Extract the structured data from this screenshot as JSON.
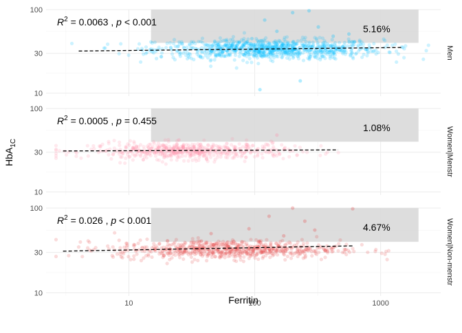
{
  "chart_data": {
    "type": "scatter",
    "xlabel": "Ferritin",
    "ylabel": "HbA",
    "ylabel_sub": "1C",
    "x_scale": "log",
    "y_scale": "log",
    "xlim": [
      2.2,
      3000
    ],
    "ylim": [
      9.2,
      100
    ],
    "x_ticks": [
      10,
      100,
      1000
    ],
    "x_tick_labels": [
      "10",
      "100",
      "1000"
    ],
    "y_ticks": [
      10,
      30,
      100
    ],
    "y_tick_labels": [
      "10",
      "30",
      "100"
    ],
    "shaded_region": {
      "x_min": 15,
      "x_max": 2000,
      "y_min": 40,
      "y_max": 100
    },
    "grid": true,
    "panels": [
      {
        "strip_label": "Men",
        "r2_value": "0.0063",
        "p_value": "< 0.001",
        "p_sep": " , ",
        "percent_label": "5.16%",
        "color": "#00BFFF",
        "trend": {
          "x": [
            4,
            1500
          ],
          "y": [
            31.9,
            35.2
          ]
        },
        "cloud": {
          "x_center": 130,
          "x_spread": 0.45,
          "y_center": 33.5,
          "y_spread": 0.06,
          "n": 900
        },
        "highlight": [
          {
            "x": 200,
            "y": 92
          },
          {
            "x": 270,
            "y": 97
          },
          {
            "x": 120,
            "y": 75
          },
          {
            "x": 320,
            "y": 62
          },
          {
            "x": 150,
            "y": 55
          },
          {
            "x": 420,
            "y": 48
          },
          {
            "x": 95,
            "y": 45
          },
          {
            "x": 560,
            "y": 51
          },
          {
            "x": 110,
            "y": 11
          },
          {
            "x": 230,
            "y": 14
          },
          {
            "x": 60,
            "y": 42
          }
        ]
      },
      {
        "strip_label": "Women|Menstr",
        "r2_value": "0.0005",
        "p_value": "= 0.455",
        "p_sep": " , ",
        "percent_label": "1.08%",
        "color": "#FF8FAB",
        "trend": {
          "x": [
            3,
            460
          ],
          "y": [
            31.0,
            31.9
          ]
        },
        "cloud": {
          "x_center": 30,
          "x_spread": 0.4,
          "y_center": 31,
          "y_spread": 0.05,
          "n": 550
        },
        "highlight": [
          {
            "x": 25,
            "y": 42
          },
          {
            "x": 60,
            "y": 38
          },
          {
            "x": 150,
            "y": 48
          }
        ]
      },
      {
        "strip_label": "Women|Non-menstr",
        "r2_value": "0.026",
        "p_value": "< 0.001",
        "p_sep": " , ",
        "percent_label": "4.67%",
        "color": "#E64B4B",
        "trend": {
          "x": [
            3,
            600
          ],
          "y": [
            31.0,
            35.8
          ]
        },
        "cloud": {
          "x_center": 60,
          "x_spread": 0.45,
          "y_center": 32.5,
          "y_spread": 0.055,
          "n": 700
        },
        "highlight": [
          {
            "x": 200,
            "y": 100
          },
          {
            "x": 600,
            "y": 98
          },
          {
            "x": 130,
            "y": 80
          },
          {
            "x": 250,
            "y": 70
          },
          {
            "x": 90,
            "y": 57
          },
          {
            "x": 300,
            "y": 55
          },
          {
            "x": 45,
            "y": 50
          },
          {
            "x": 170,
            "y": 47
          }
        ]
      }
    ]
  }
}
